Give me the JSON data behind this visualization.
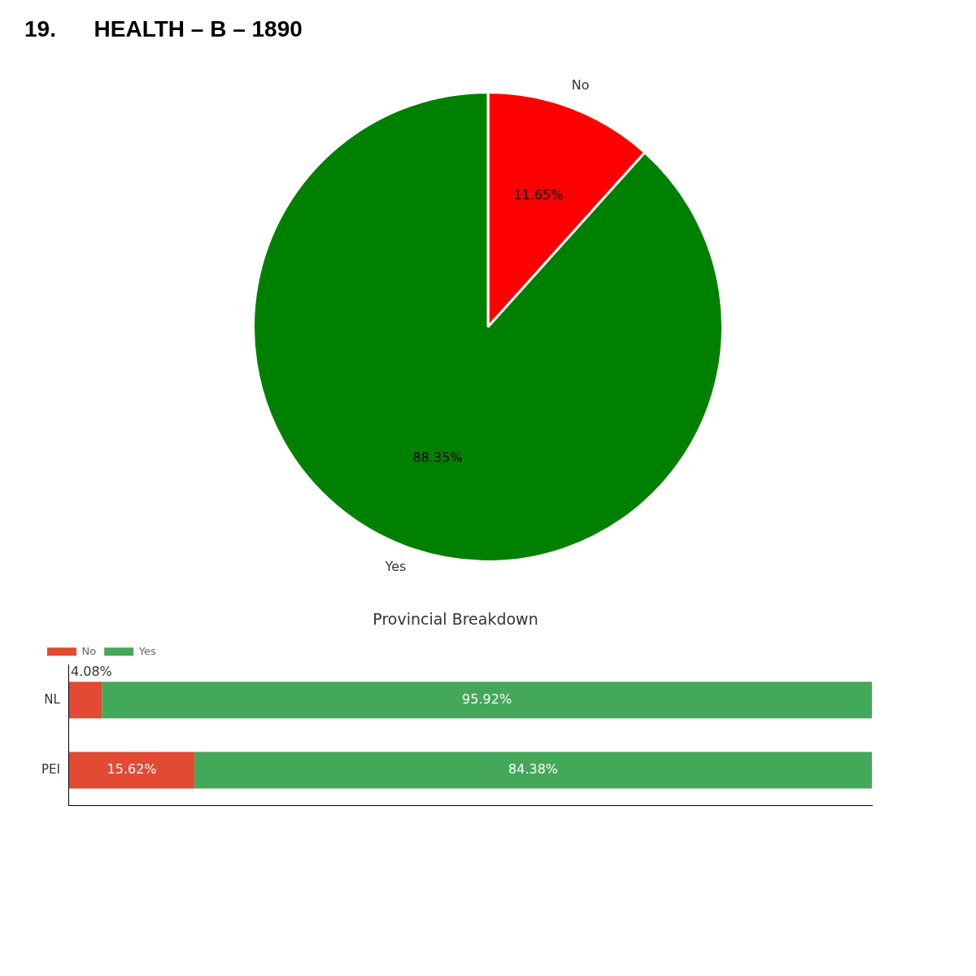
{
  "chart_data": [
    {
      "type": "pie",
      "title": "19.      HEALTH – B – 1890",
      "categories": [
        "No",
        "Yes"
      ],
      "values": [
        11.65,
        88.35
      ],
      "colors": [
        "#ff0000",
        "#008000"
      ],
      "value_labels": [
        "11.65%",
        "88.35%"
      ],
      "legend": false
    },
    {
      "type": "bar",
      "title": "Provincial Breakdown",
      "orientation": "horizontal",
      "stacked": true,
      "categories": [
        "NL",
        "PEI"
      ],
      "xlim": [
        0,
        100
      ],
      "tick_labels": "y",
      "grid": false,
      "legend": "top left",
      "series": [
        {
          "name": "No",
          "color": "#e24a33",
          "values": [
            4.08,
            15.62
          ],
          "value_labels": [
            "4.08%",
            "15.62%"
          ]
        },
        {
          "name": "Yes",
          "color": "#43a85a",
          "values": [
            95.92,
            84.38
          ],
          "value_labels": [
            "95.92%",
            "84.38%"
          ]
        }
      ]
    }
  ]
}
